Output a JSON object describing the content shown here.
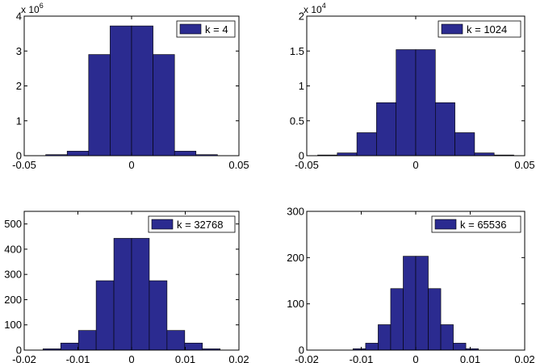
{
  "chart_data": [
    {
      "type": "bar",
      "legend": "k = 4",
      "legend_position": "top-right",
      "exponent_label": "x 10",
      "exponent_power": "6",
      "xlim": [
        -0.05,
        0.05
      ],
      "ylim": [
        0,
        4000000
      ],
      "xticks": [
        -0.05,
        0,
        0.05
      ],
      "xtick_labels": [
        "-0.05",
        "0",
        "0.05"
      ],
      "yticks": [
        0,
        1000000,
        2000000,
        3000000,
        4000000
      ],
      "ytick_labels": [
        "0",
        "1",
        "2",
        "3",
        "4"
      ],
      "bin_edges": [
        -0.04,
        -0.03,
        -0.02,
        -0.01,
        0,
        0.01,
        0.02,
        0.03,
        0.04
      ],
      "values": [
        30000,
        130000,
        2900000,
        3720000,
        3720000,
        2900000,
        130000,
        30000
      ],
      "bar_color": "#2b2b90",
      "grid": false
    },
    {
      "type": "bar",
      "legend": "k = 1024",
      "legend_position": "top-right",
      "exponent_label": "x 10",
      "exponent_power": "4",
      "xlim": [
        -0.05,
        0.05
      ],
      "ylim": [
        0,
        20000
      ],
      "xticks": [
        -0.05,
        0,
        0.05
      ],
      "xtick_labels": [
        "-0.05",
        "0",
        "0.05"
      ],
      "yticks": [
        0,
        5000,
        10000,
        15000,
        20000
      ],
      "ytick_labels": [
        "0",
        "0.5",
        "1",
        "1.5",
        "2"
      ],
      "bin_edges": [
        -0.045,
        -0.036,
        -0.027,
        -0.018,
        -0.009,
        0,
        0.009,
        0.018,
        0.027,
        0.036,
        0.045
      ],
      "values": [
        100,
        400,
        3300,
        7600,
        15200,
        15200,
        7600,
        3300,
        400,
        100
      ],
      "bar_color": "#2b2b90",
      "grid": false
    },
    {
      "type": "bar",
      "legend": "k = 32768",
      "legend_position": "top-right",
      "xlim": [
        -0.02,
        0.02
      ],
      "ylim": [
        0,
        550
      ],
      "xticks": [
        -0.02,
        -0.01,
        0,
        0.01,
        0.02
      ],
      "xtick_labels": [
        "-0.02",
        "-0.01",
        "0",
        "0.01",
        "0.02"
      ],
      "yticks": [
        0,
        100,
        200,
        300,
        400,
        500
      ],
      "ytick_labels": [
        "0",
        "100",
        "200",
        "300",
        "400",
        "500"
      ],
      "bin_edges": [
        -0.0165,
        -0.0132,
        -0.0099,
        -0.0066,
        -0.0033,
        0,
        0.0033,
        0.0066,
        0.0099,
        0.0132,
        0.0165
      ],
      "values": [
        5,
        28,
        78,
        275,
        443,
        443,
        275,
        78,
        28,
        5
      ],
      "bar_color": "#2b2b90",
      "grid": false
    },
    {
      "type": "bar",
      "legend": "k = 65536",
      "legend_position": "top-right",
      "xlim": [
        -0.02,
        0.02
      ],
      "ylim": [
        0,
        300
      ],
      "xticks": [
        -0.02,
        -0.01,
        0,
        0.01,
        0.02
      ],
      "xtick_labels": [
        "-0.02",
        "-0.01",
        "0",
        "0.01",
        "0.02"
      ],
      "yticks": [
        0,
        100,
        200,
        300
      ],
      "ytick_labels": [
        "0",
        "100",
        "200",
        "300"
      ],
      "bin_edges": [
        -0.0115,
        -0.0092,
        -0.0069,
        -0.0046,
        -0.0023,
        0,
        0.0023,
        0.0046,
        0.0069,
        0.0092,
        0.0115
      ],
      "values": [
        3,
        15,
        55,
        133,
        203,
        203,
        133,
        55,
        15,
        3
      ],
      "bar_color": "#2b2b90",
      "grid": false
    }
  ]
}
